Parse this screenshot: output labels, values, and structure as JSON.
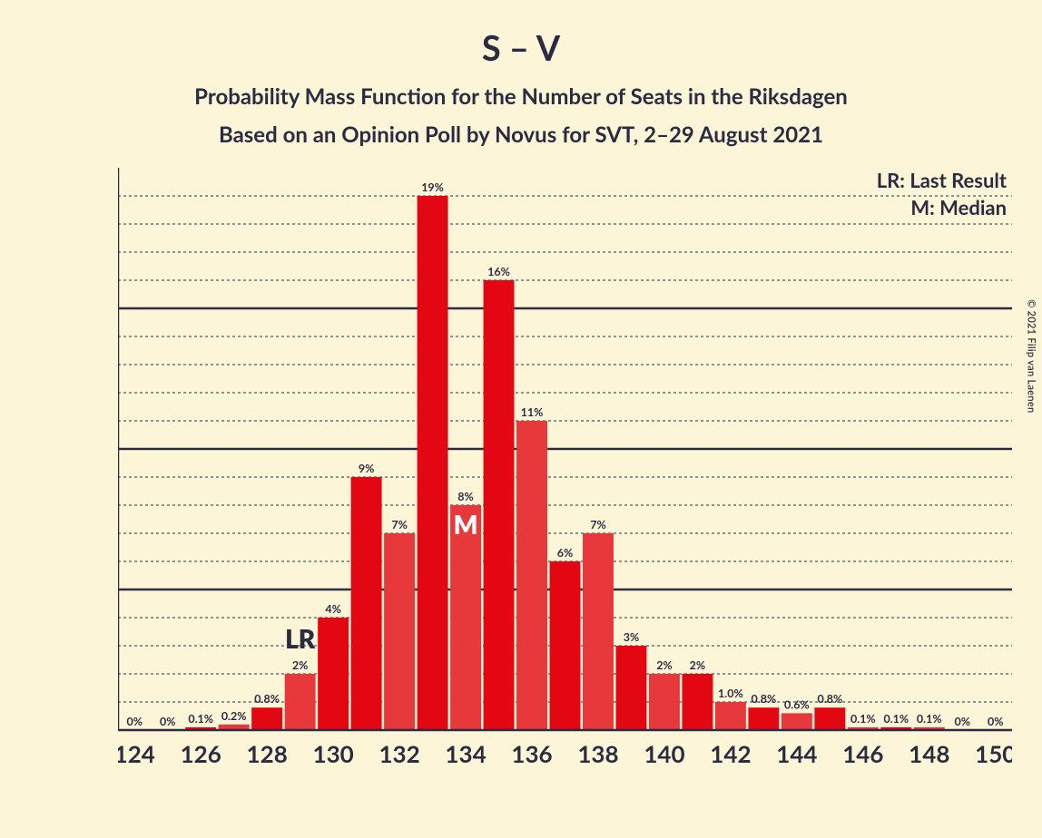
{
  "copyright": "© 2021 Filip van Laenen",
  "title": "S – V",
  "subtitle1": "Probability Mass Function for the Number of Seats in the Riksdagen",
  "subtitle2": "Based on an Opinion Poll by Novus for SVT, 2–29 August 2021",
  "colors": {
    "background": "#fcf5d8",
    "text": "#2b2b42",
    "axis": "#2b2b42",
    "grid": "#2b2b42",
    "bar_primary": "#e30613",
    "bar_secondary": "#e7383b",
    "median_label": "#ffffff"
  },
  "legend": {
    "lr": "LR: Last Result",
    "m": "M: Median"
  },
  "annotations": {
    "lr_text": "LR",
    "m_text": "M",
    "lr_at_x": 129,
    "m_at_x": 134
  },
  "chart": {
    "type": "bar",
    "x_start": 124,
    "x_end": 150,
    "x_tick_step": 2,
    "y_max": 20,
    "y_ticks": [
      5,
      10,
      15
    ],
    "y_minor_ticks": [
      1,
      2,
      3,
      4,
      6,
      7,
      8,
      9,
      11,
      12,
      13,
      14,
      16,
      17,
      18,
      19
    ],
    "bar_width": 0.93,
    "bars": [
      {
        "x": 124,
        "value": 0,
        "label": "0%",
        "shade": "primary"
      },
      {
        "x": 125,
        "value": 0,
        "label": "0%",
        "shade": "secondary"
      },
      {
        "x": 126,
        "value": 0.1,
        "label": "0.1%",
        "shade": "primary"
      },
      {
        "x": 127,
        "value": 0.2,
        "label": "0.2%",
        "shade": "secondary"
      },
      {
        "x": 128,
        "value": 0.8,
        "label": "0.8%",
        "shade": "primary"
      },
      {
        "x": 129,
        "value": 2,
        "label": "2%",
        "shade": "secondary"
      },
      {
        "x": 130,
        "value": 4,
        "label": "4%",
        "shade": "primary"
      },
      {
        "x": 131,
        "value": 9,
        "label": "9%",
        "shade": "primary"
      },
      {
        "x": 132,
        "value": 7,
        "label": "7%",
        "shade": "secondary"
      },
      {
        "x": 133,
        "value": 19,
        "label": "19%",
        "shade": "primary"
      },
      {
        "x": 134,
        "value": 8,
        "label": "8%",
        "shade": "secondary"
      },
      {
        "x": 135,
        "value": 16,
        "label": "16%",
        "shade": "primary"
      },
      {
        "x": 136,
        "value": 11,
        "label": "11%",
        "shade": "secondary"
      },
      {
        "x": 137,
        "value": 6,
        "label": "6%",
        "shade": "primary"
      },
      {
        "x": 138,
        "value": 7,
        "label": "7%",
        "shade": "secondary"
      },
      {
        "x": 139,
        "value": 3,
        "label": "3%",
        "shade": "primary"
      },
      {
        "x": 140,
        "value": 2,
        "label": "2%",
        "shade": "secondary"
      },
      {
        "x": 141,
        "value": 2,
        "label": "2%",
        "shade": "primary"
      },
      {
        "x": 142,
        "value": 1.0,
        "label": "1.0%",
        "shade": "secondary"
      },
      {
        "x": 143,
        "value": 0.8,
        "label": "0.8%",
        "shade": "primary"
      },
      {
        "x": 144,
        "value": 0.6,
        "label": "0.6%",
        "shade": "secondary"
      },
      {
        "x": 145,
        "value": 0.8,
        "label": "0.8%",
        "shade": "primary"
      },
      {
        "x": 146,
        "value": 0.1,
        "label": "0.1%",
        "shade": "secondary"
      },
      {
        "x": 147,
        "value": 0.1,
        "label": "0.1%",
        "shade": "primary"
      },
      {
        "x": 148,
        "value": 0.1,
        "label": "0.1%",
        "shade": "secondary"
      },
      {
        "x": 149,
        "value": 0,
        "label": "0%",
        "shade": "primary"
      },
      {
        "x": 150,
        "value": 0,
        "label": "0%",
        "shade": "secondary"
      }
    ]
  },
  "layout": {
    "title_fontsize": 38,
    "subtitle_fontsize": 24,
    "legend_fontsize": 22,
    "lr_fontsize": 28,
    "m_fontsize": 28,
    "bar_label_fontsize": 12.5,
    "axis_tick_fontsize": 26
  }
}
